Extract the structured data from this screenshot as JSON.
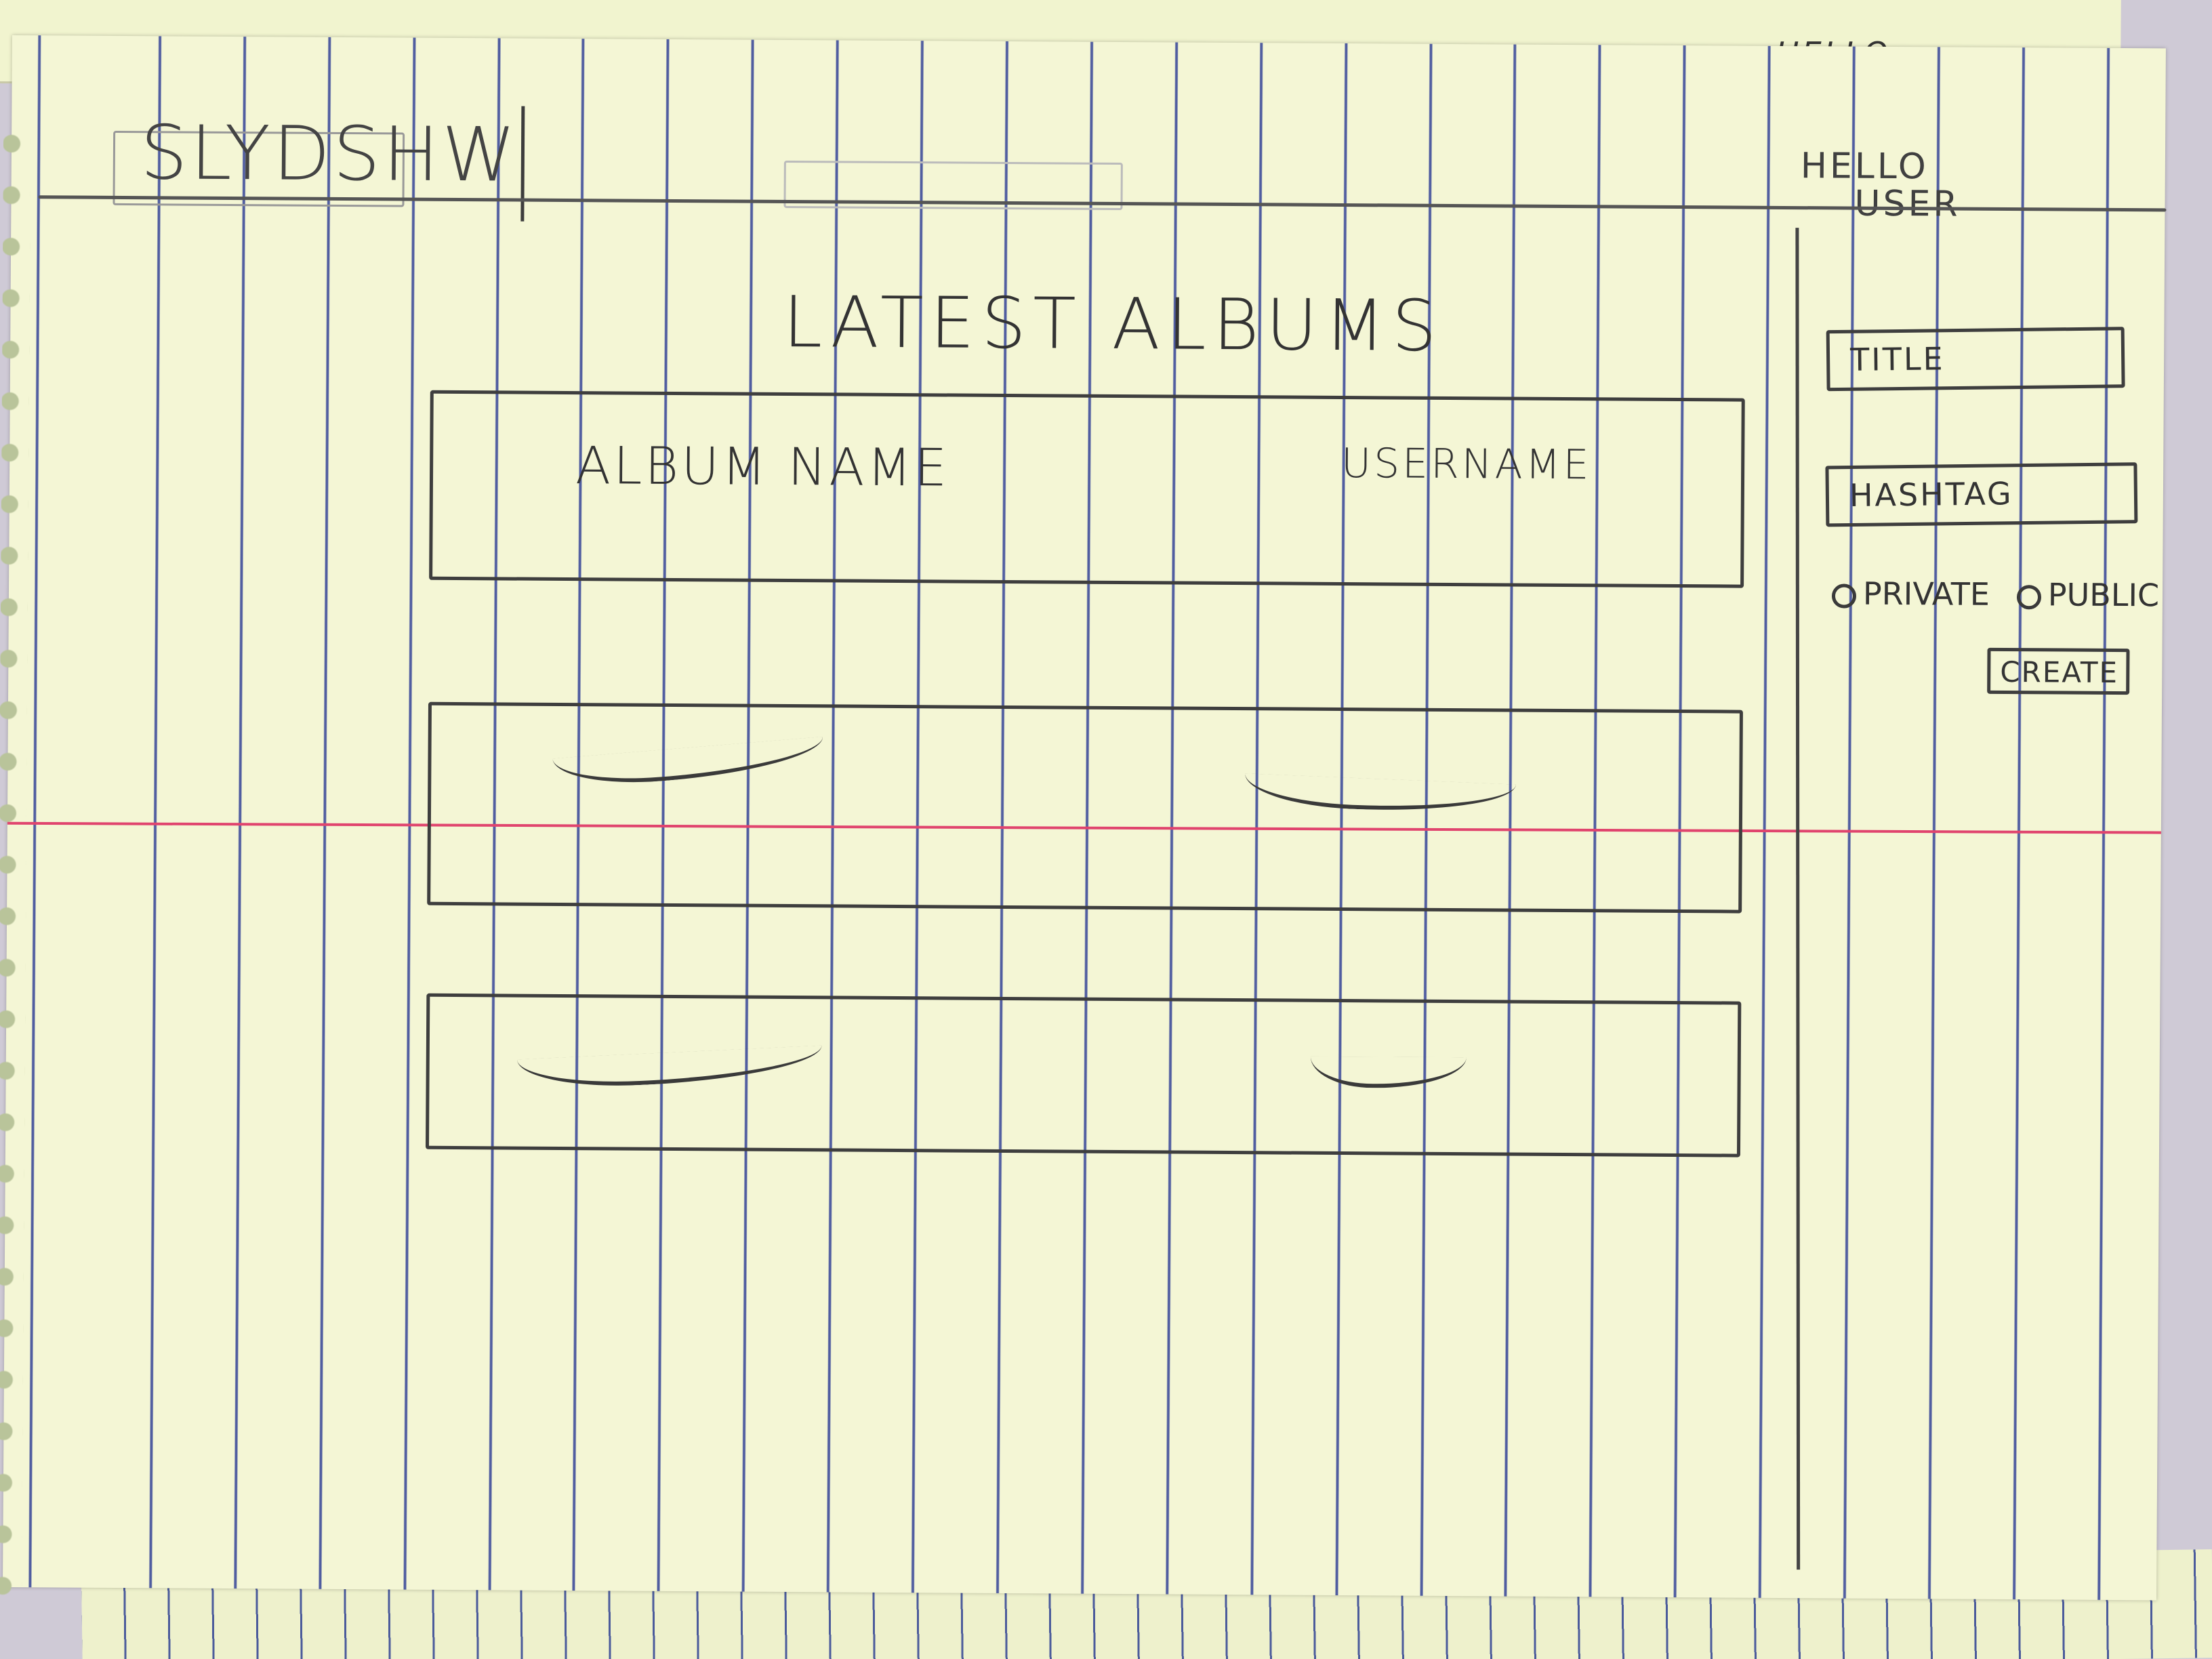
{
  "app": {
    "logo": "SLYDSHW",
    "greeting_line1": "HELLO",
    "greeting_line2": "USER",
    "back_page_greeting": "HELLO"
  },
  "main": {
    "title": "LATEST ALBUMS",
    "header_row": {
      "album_label": "ALBUM NAME",
      "user_label": "USERNAME"
    },
    "rows": [
      {
        "album": "",
        "user": ""
      },
      {
        "album": "",
        "user": ""
      }
    ]
  },
  "sidebar": {
    "title_field": {
      "placeholder": "TITLE"
    },
    "hashtag_field": {
      "placeholder": "HASHTAG"
    },
    "visibility": {
      "options": [
        "PRIVATE",
        "PUBLIC"
      ]
    },
    "create_button": "CREATE"
  },
  "colors": {
    "paper": "#f4f6d5",
    "rule_lines": "#505da0",
    "margin_line": "#e0446e",
    "pencil": "#3e3e3e"
  }
}
